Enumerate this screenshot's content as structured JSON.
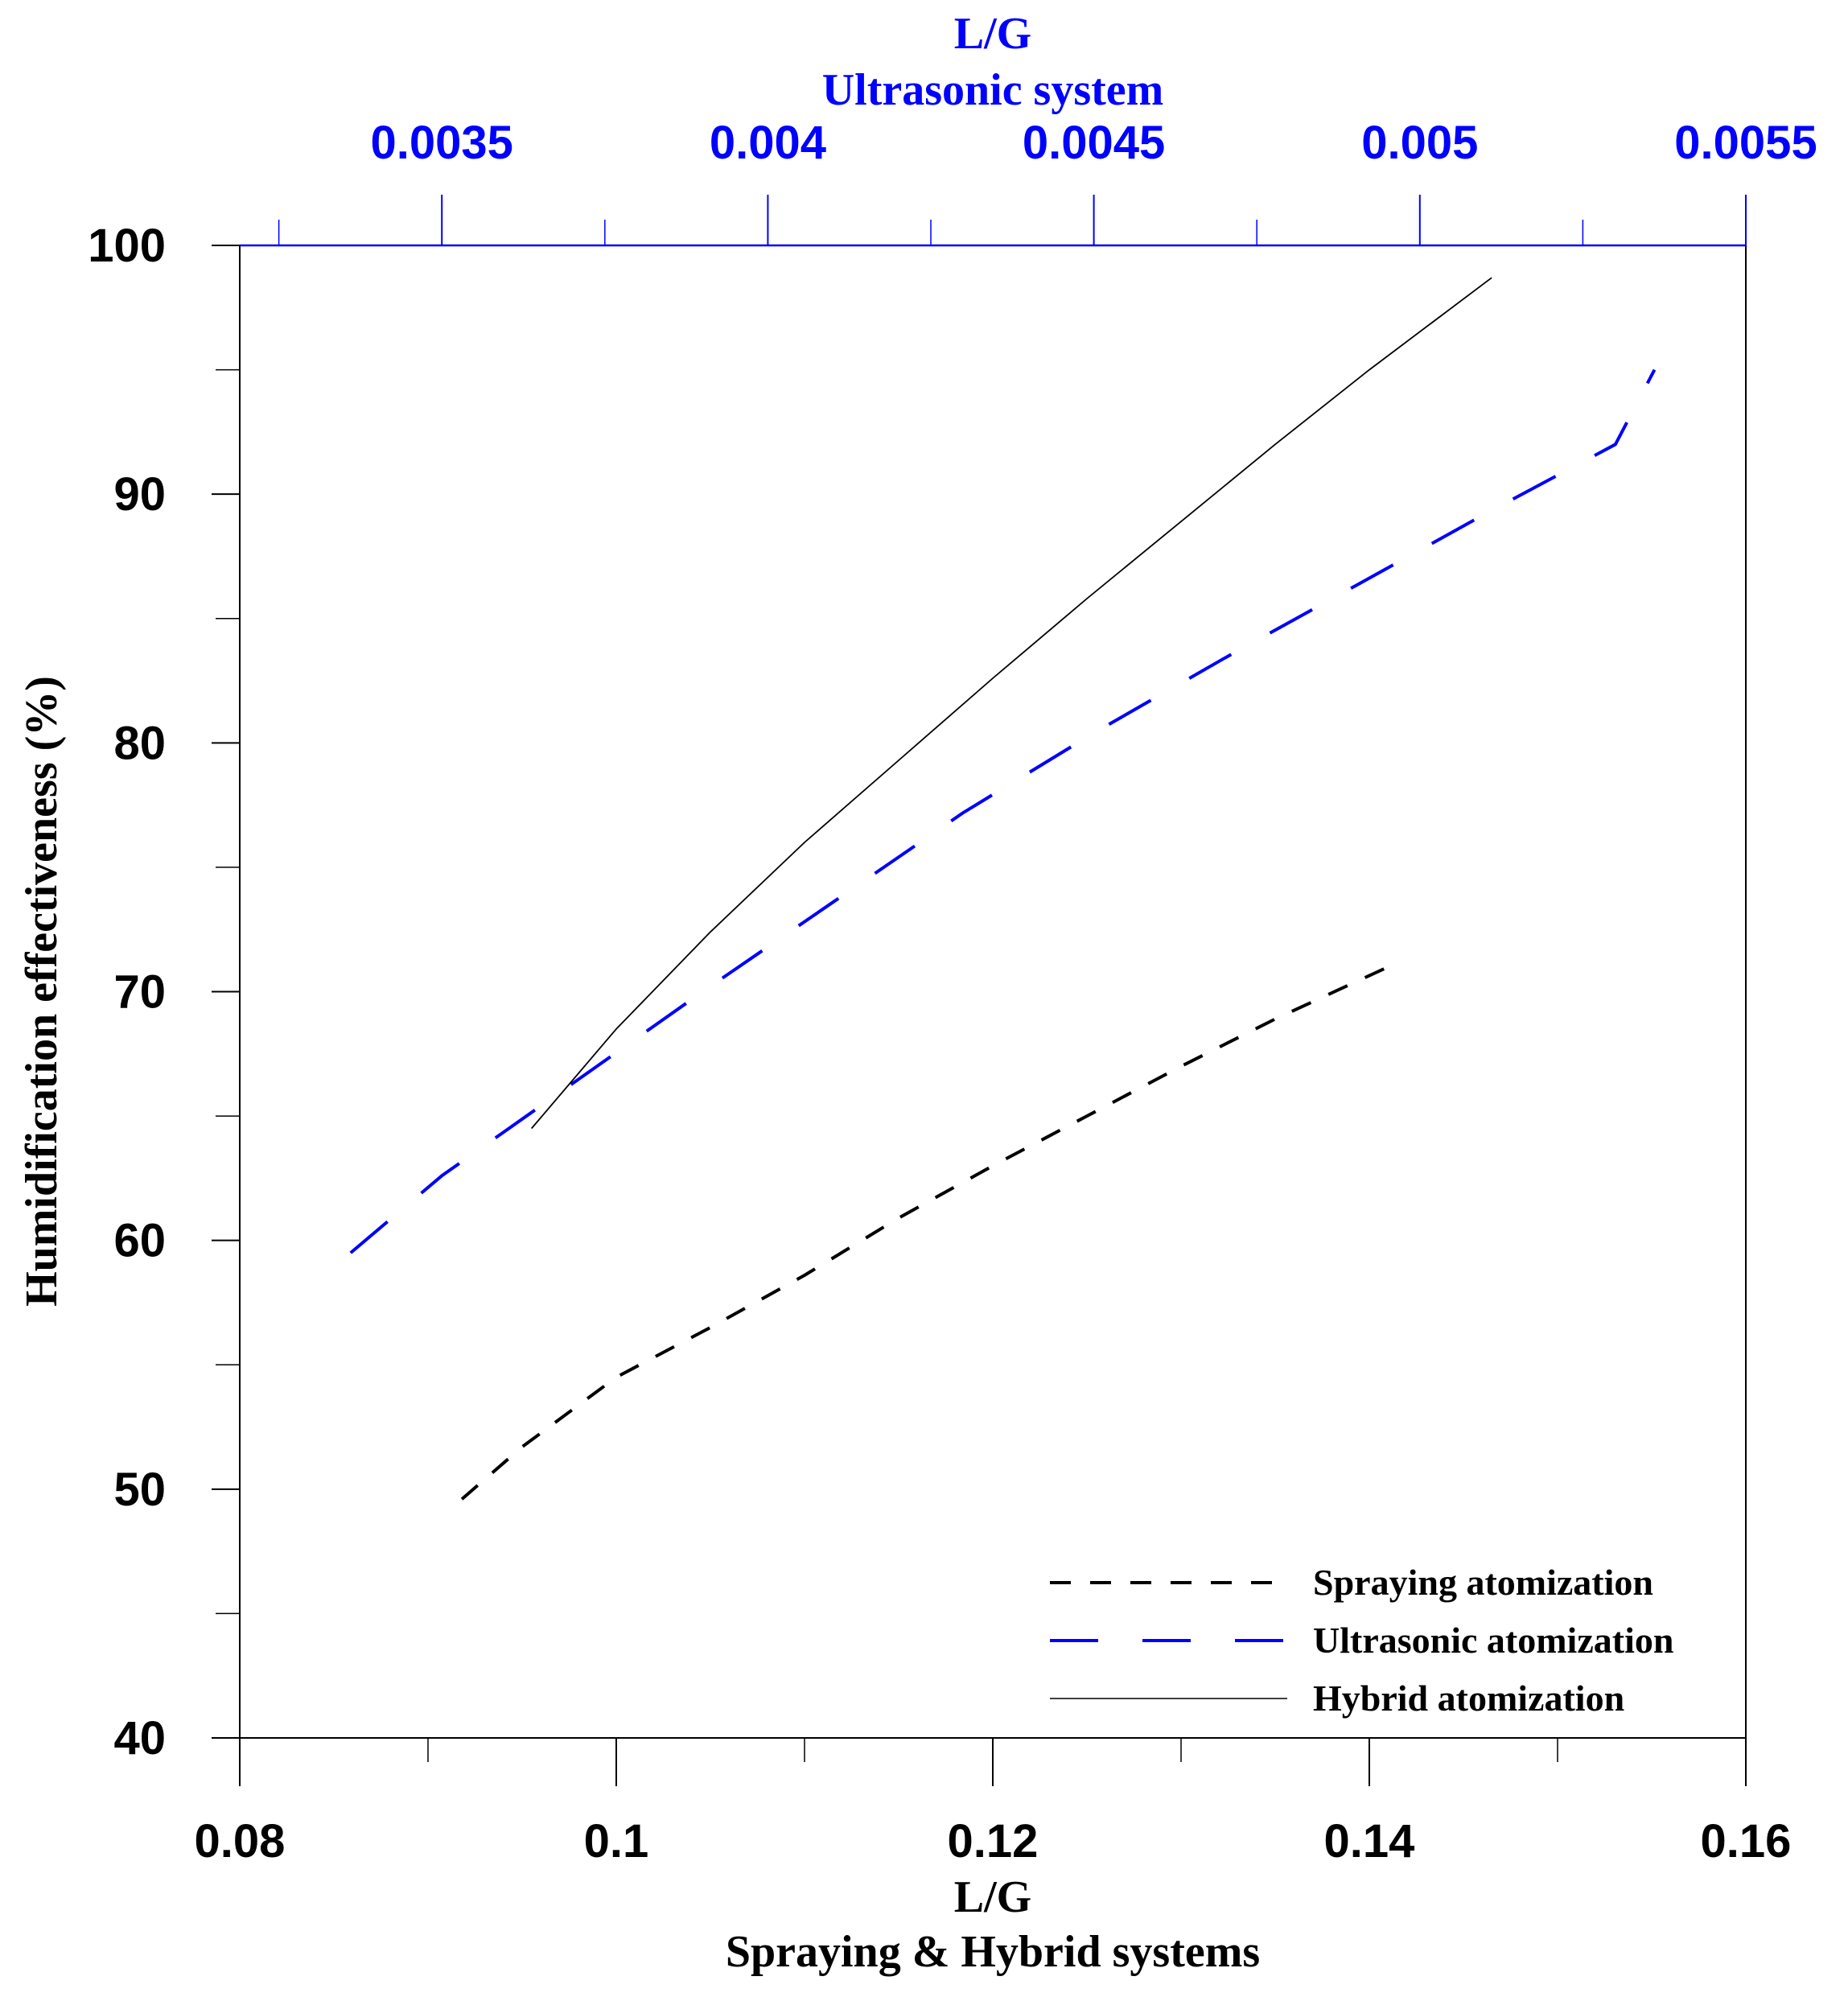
{
  "chart_data": {
    "type": "line",
    "title": "",
    "xlabel": "L/G",
    "xlabel_sub": "Spraying & Hybrid systems",
    "x2label": "L/G",
    "x2label_sub": "Ultrasonic system",
    "ylabel": "Humidification effectiveness (%)",
    "xlim": [
      0.08,
      0.16
    ],
    "x2lim": [
      0.00319,
      0.0055
    ],
    "ylim": [
      40,
      100
    ],
    "x_ticks": [
      "0.08",
      "0.1",
      "0.12",
      "0.14",
      "0.16"
    ],
    "x2_ticks": [
      "0.0035",
      "0.004",
      "0.0045",
      "0.005",
      "0.0055"
    ],
    "y_ticks": [
      "40",
      "50",
      "60",
      "70",
      "80",
      "90",
      "100"
    ],
    "grid": false,
    "legend_position": "bottom-right",
    "colors": {
      "primary_axis": "#000000",
      "secondary_axis": "#0000ff",
      "spraying": "#000000",
      "ultrasonic": "#0000ff",
      "hybrid": "#000000"
    },
    "series": [
      {
        "name": "Spraying atomization",
        "axis": "bottom",
        "style": "short-dash",
        "x": [
          0.0918,
          0.095,
          0.1,
          0.105,
          0.11,
          0.115,
          0.12,
          0.125,
          0.13,
          0.135,
          0.1413
        ],
        "y": [
          49.6,
          51.7,
          54.5,
          56.5,
          58.6,
          60.9,
          63.0,
          65.0,
          67.0,
          68.9,
          71.1
        ]
      },
      {
        "name": "Ultrasonic atomization",
        "axis": "top",
        "style": "long-dash",
        "x": [
          0.00336,
          0.0035,
          0.0037,
          0.0039,
          0.0041,
          0.0043,
          0.0045,
          0.0047,
          0.0049,
          0.0051,
          0.0053,
          0.00536
        ],
        "y": [
          59.5,
          62.6,
          66.3,
          70.0,
          73.6,
          77.2,
          80.4,
          83.4,
          86.3,
          89.2,
          92.0,
          95.0
        ]
      },
      {
        "name": "Hybrid atomization",
        "axis": "bottom",
        "style": "solid",
        "x": [
          0.0955,
          0.1,
          0.105,
          0.11,
          0.115,
          0.12,
          0.125,
          0.13,
          0.135,
          0.14,
          0.1465
        ],
        "y": [
          64.5,
          68.5,
          72.4,
          76.0,
          79.3,
          82.6,
          85.8,
          88.9,
          92.0,
          95.0,
          98.7
        ]
      }
    ]
  }
}
